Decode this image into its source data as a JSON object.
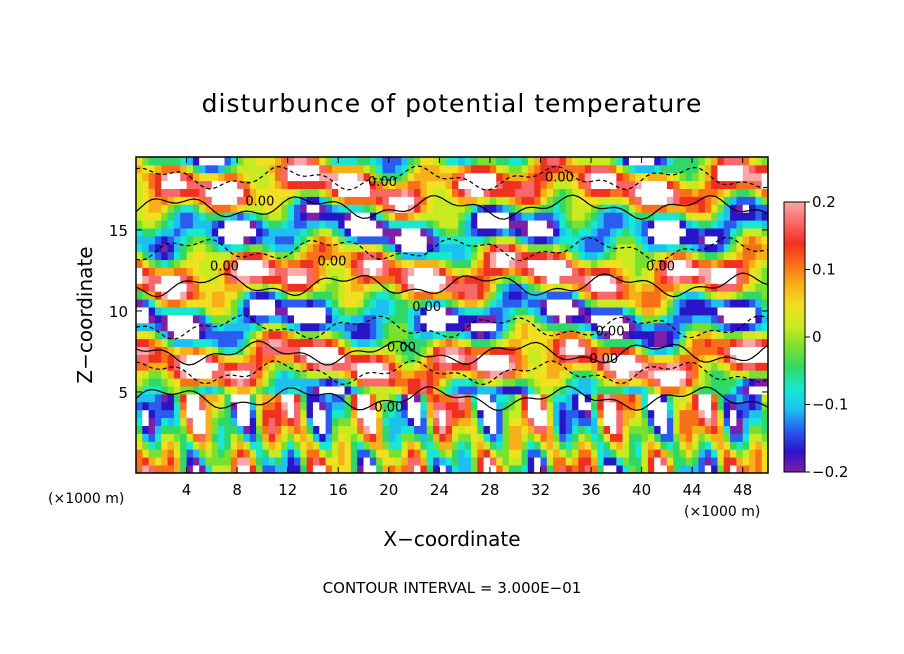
{
  "chart_data": {
    "type": "heatmap",
    "title": "disturbunce of potential temperature",
    "xlabel": "X−coordinate",
    "ylabel": "Z−coordinate",
    "x_unit_label": "(×1000 m)",
    "x_unit_label_right": "(×1000 m)",
    "xlim": [
      0,
      50
    ],
    "ylim": [
      0,
      19.5
    ],
    "x_ticks": [
      4,
      8,
      12,
      16,
      20,
      24,
      28,
      32,
      36,
      40,
      44,
      48
    ],
    "y_ticks": [
      5,
      10,
      15
    ],
    "contour_interval_text": "CONTOUR INTERVAL = 3.000E−01",
    "contour_labels": [
      {
        "text": "0.00",
        "x": 19.5,
        "z": 17.7
      },
      {
        "text": "0.00",
        "x": 33.5,
        "z": 18.0
      },
      {
        "text": "0.00",
        "x": 9.8,
        "z": 16.5
      },
      {
        "text": "0.00",
        "x": 15.5,
        "z": 12.8
      },
      {
        "text": "0.00",
        "x": 41.5,
        "z": 12.5
      },
      {
        "text": "0.00",
        "x": 7.0,
        "z": 12.5
      },
      {
        "text": "0.00",
        "x": 23.0,
        "z": 10.0
      },
      {
        "text": "0.00",
        "x": 37.5,
        "z": 8.5
      },
      {
        "text": "0.00",
        "x": 21.0,
        "z": 7.5
      },
      {
        "text": "0.00",
        "x": 37.0,
        "z": 6.8
      },
      {
        "text": "0.00",
        "x": 20.0,
        "z": 3.8
      }
    ],
    "colorbar": {
      "min": -0.2,
      "max": 0.2,
      "tick_labels": [
        "0.2",
        "0.1",
        "0",
        "−0.1",
        "−0.2"
      ],
      "tick_values": [
        0.2,
        0.1,
        0,
        -0.1,
        -0.2
      ],
      "colors": [
        "#7e1fa8",
        "#2a14c8",
        "#2a5cf0",
        "#1ec0f0",
        "#18e8d0",
        "#30d868",
        "#7ae030",
        "#c8ea20",
        "#f0e020",
        "#f8b018",
        "#f87018",
        "#f03020",
        "#f86868",
        "#f8a8a8"
      ]
    },
    "colors": {
      "deep_purple": "#7e1fa8",
      "blue": "#2a14c8",
      "cyan": "#1ec0f0",
      "green": "#30d868",
      "yellow_green": "#c8ea20",
      "orange": "#f87018",
      "red": "#f03020",
      "pink": "#f8a8a8",
      "out_of_range": "#ffffff"
    },
    "grid": false,
    "legend_placement": "right-colorbar"
  }
}
